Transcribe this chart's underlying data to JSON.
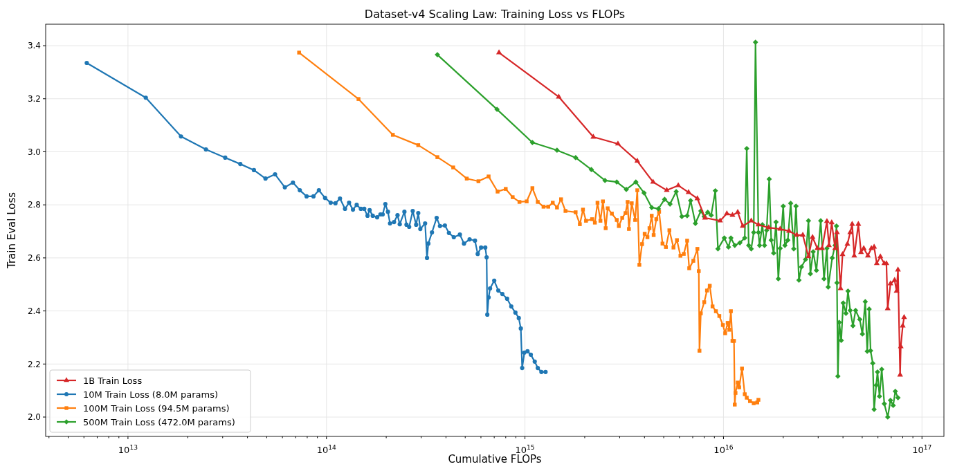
{
  "chart_data": {
    "type": "line",
    "title": "Dataset-v4 Scaling Law: Training Loss vs FLOPs",
    "xlabel": "Cumulative FLOPs",
    "ylabel": "Train Eval Loss",
    "log": "x",
    "grid": true,
    "legend": "bottom left",
    "line_style": "solid",
    "xlim": [
      3850000000000.0,
      1.29e+17
    ],
    "xticks": [
      {
        "value": 4000000000000.0,
        "label": null
      },
      {
        "value": 5000000000000.0,
        "label": null
      },
      {
        "value": 6000000000000.0,
        "label": null
      },
      {
        "value": 7000000000000.0,
        "label": null
      },
      {
        "value": 8000000000000.0,
        "label": null
      },
      {
        "value": 9000000000000.0,
        "label": null
      },
      {
        "value": 10000000000000.0,
        "label": "10$^{13}$"
      },
      {
        "value": 20000000000000.0,
        "label": null
      },
      {
        "value": 30000000000000.0,
        "label": null
      },
      {
        "value": 40000000000000.0,
        "label": null
      },
      {
        "value": 50000000000000.0,
        "label": null
      },
      {
        "value": 60000000000000.0,
        "label": null
      },
      {
        "value": 70000000000000.0,
        "label": null
      },
      {
        "value": 80000000000000.0,
        "label": null
      },
      {
        "value": 90000000000000.0,
        "label": null
      },
      {
        "value": 100000000000000.0,
        "label": "10$^{14}$"
      },
      {
        "value": 200000000000000.0,
        "label": null
      },
      {
        "value": 300000000000000.0,
        "label": null
      },
      {
        "value": 400000000000000.0,
        "label": null
      },
      {
        "value": 500000000000000.0,
        "label": null
      },
      {
        "value": 600000000000000.0,
        "label": null
      },
      {
        "value": 700000000000000.0,
        "label": null
      },
      {
        "value": 800000000000000.0,
        "label": null
      },
      {
        "value": 900000000000000.0,
        "label": null
      },
      {
        "value": 1000000000000000.0,
        "label": "10$^{15}$"
      },
      {
        "value": 2000000000000000.0,
        "label": null
      },
      {
        "value": 3000000000000000.0,
        "label": null
      },
      {
        "value": 4000000000000000.0,
        "label": null
      },
      {
        "value": 5000000000000000.0,
        "label": null
      },
      {
        "value": 6000000000000000.0,
        "label": null
      },
      {
        "value": 7000000000000000.0,
        "label": null
      },
      {
        "value": 8000000000000000.0,
        "label": null
      },
      {
        "value": 9000000000000000.0,
        "label": null
      },
      {
        "value": 1e+16,
        "label": "10$^{16}$"
      },
      {
        "value": 2e+16,
        "label": null
      },
      {
        "value": 3e+16,
        "label": null
      },
      {
        "value": 4e+16,
        "label": null
      },
      {
        "value": 5e+16,
        "label": null
      },
      {
        "value": 6e+16,
        "label": null
      },
      {
        "value": 7e+16,
        "label": null
      },
      {
        "value": 8e+16,
        "label": null
      },
      {
        "value": 9e+16,
        "label": null
      },
      {
        "value": 1e+17,
        "label": "10$^{17}$"
      }
    ],
    "ylim": [
      1.927,
      3.481
    ],
    "yticks": [
      {
        "value": 2.0,
        "label": "2.0"
      },
      {
        "value": 2.2,
        "label": "2.2"
      },
      {
        "value": 2.4,
        "label": "2.4"
      },
      {
        "value": 2.6,
        "label": "2.6"
      },
      {
        "value": 2.8,
        "label": "2.8"
      },
      {
        "value": 3.0,
        "label": "3.0"
      },
      {
        "value": 3.2,
        "label": "3.2"
      },
      {
        "value": 3.4,
        "label": "3.4"
      }
    ],
    "series": [
      {
        "name": "1B Train Loss",
        "color": "#d62728",
        "marker": "triangle",
        "x": [
          740000000000000.0,
          1480000000000000.0,
          2210000000000000.0,
          2940000000000000.0,
          3680000000000000.0,
          4420000000000000.0,
          5180000000000000.0,
          5920000000000000.0,
          6670000000000000.0,
          7390000000000000.0,
          8070000000000000.0,
          9620000000000000.0,
          1.04e+16,
          1.11e+16,
          1.18e+16,
          1.25e+16,
          1.38e+16,
          1.5e+16,
          1.69e+16,
          1.93e+16,
          2.14e+16,
          2.34e+16,
          2.51e+16,
          2.68e+16,
          2.81e+16,
          2.97e+16,
          3.14e+16,
          3.32e+16,
          3.4e+16,
          3.51e+16,
          3.65e+16,
          3.73e+16,
          3.89e+16,
          3.98e+16,
          4.21e+16,
          4.35e+16,
          4.45e+16,
          4.56e+16,
          4.78e+16,
          4.93e+16,
          5.09e+16,
          5.34e+16,
          5.56e+16,
          5.74e+16,
          5.92e+16,
          6.17e+16,
          6.46e+16,
          6.62e+16,
          6.72e+16,
          6.94e+16,
          7.28e+16,
          7.45e+16,
          7.57e+16,
          7.76e+16,
          7.82e+16,
          8e+16,
          8.13e+16
        ],
        "values": [
          3.374,
          3.207,
          3.056,
          3.03,
          2.965,
          2.886,
          2.855,
          2.873,
          2.847,
          2.824,
          2.751,
          2.74,
          2.767,
          2.761,
          2.772,
          2.72,
          2.74,
          2.725,
          2.714,
          2.709,
          2.701,
          2.686,
          2.686,
          2.605,
          2.678,
          2.636,
          2.636,
          2.738,
          2.647,
          2.733,
          2.636,
          2.696,
          2.485,
          2.613,
          2.652,
          2.696,
          2.727,
          2.608,
          2.727,
          2.621,
          2.636,
          2.608,
          2.636,
          2.641,
          2.579,
          2.605,
          2.579,
          2.579,
          2.409,
          2.503,
          2.516,
          2.475,
          2.555,
          2.159,
          2.266,
          2.344,
          2.376
        ]
      },
      {
        "name": "10M Train Loss (8.0M params)",
        "color": "#1f77b4",
        "marker": "circle",
        "x": [
          6200000000000.0,
          12300000000000.0,
          18500000000000.0,
          24700000000000.0,
          30900000000000.0,
          36800000000000.0,
          43100000000000.0,
          49300000000000.0,
          55100000000000.0,
          61700000000000.0,
          67800000000000.0,
          73400000000000.0,
          79400000000000.0,
          86000000000000.0,
          91600000000000.0,
          98400000000000.0,
          105000000000000.0,
          111000000000000.0,
          117000000000000.0,
          124000000000000.0,
          130000000000000.0,
          136000000000000.0,
          142000000000000.0,
          149000000000000.0,
          155000000000000.0,
          161000000000000.0,
          165000000000000.0,
          171000000000000.0,
          180000000000000.0,
          187000000000000.0,
          192000000000000.0,
          198000000000000.0,
          204000000000000.0,
          209000000000000.0,
          219000000000000.0,
          228000000000000.0,
          234000000000000.0,
          247000000000000.0,
          253000000000000.0,
          261000000000000.0,
          272000000000000.0,
          283000000000000.0,
          290000000000000.0,
          297000000000000.0,
          314000000000000.0,
          321000000000000.0,
          326000000000000.0,
          340000000000000.0,
          359000000000000.0,
          373000000000000.0,
          395000000000000.0,
          414000000000000.0,
          438000000000000.0,
          470000000000000.0,
          493000000000000.0,
          526000000000000.0,
          560000000000000.0,
          578000000000000.0,
          601000000000000.0,
          631000000000000.0,
          641000000000000.0,
          646000000000000.0,
          656000000000000.0,
          667000000000000.0,
          700000000000000.0,
          734000000000000.0,
          769000000000000.0,
          813000000000000.0,
          853000000000000.0,
          895000000000000.0,
          931000000000000.0,
          953000000000000.0,
          968000000000000.0,
          993000000000000.0,
          1030000000000000.0,
          1070000000000000.0,
          1120000000000000.0,
          1160000000000000.0,
          1210000000000000.0,
          1270000000000000.0
        ],
        "values": [
          3.335,
          3.204,
          3.058,
          3.009,
          2.978,
          2.954,
          2.931,
          2.899,
          2.915,
          2.866,
          2.884,
          2.855,
          2.832,
          2.832,
          2.855,
          2.826,
          2.808,
          2.806,
          2.824,
          2.785,
          2.808,
          2.782,
          2.8,
          2.785,
          2.785,
          2.759,
          2.78,
          2.759,
          2.753,
          2.764,
          2.764,
          2.803,
          2.774,
          2.73,
          2.735,
          2.761,
          2.727,
          2.774,
          2.725,
          2.717,
          2.777,
          2.725,
          2.769,
          2.709,
          2.73,
          2.6,
          2.654,
          2.696,
          2.751,
          2.72,
          2.722,
          2.694,
          2.678,
          2.688,
          2.654,
          2.67,
          2.665,
          2.615,
          2.639,
          2.639,
          2.602,
          2.386,
          2.451,
          2.485,
          2.514,
          2.477,
          2.464,
          2.446,
          2.417,
          2.394,
          2.373,
          2.334,
          2.185,
          2.243,
          2.248,
          2.235,
          2.209,
          2.185,
          2.17,
          2.17
        ]
      },
      {
        "name": "100M Train Loss (94.5M params)",
        "color": "#ff7f0e",
        "marker": "square",
        "x": [
          72800000000000.0,
          145000000000000.0,
          216000000000000.0,
          290000000000000.0,
          362000000000000.0,
          435000000000000.0,
          509000000000000.0,
          583000000000000.0,
          656000000000000.0,
          728000000000000.0,
          800000000000000.0,
          867000000000000.0,
          938000000000000.0,
          1020000000000000.0,
          1090000000000000.0,
          1160000000000000.0,
          1240000000000000.0,
          1310000000000000.0,
          1380000000000000.0,
          1450000000000000.0,
          1520000000000000.0,
          1600000000000000.0,
          1800000000000000.0,
          1890000000000000.0,
          1960000000000000.0,
          2030000000000000.0,
          2180000000000000.0,
          2250000000000000.0,
          2320000000000000.0,
          2400000000000000.0,
          2470000000000000.0,
          2550000000000000.0,
          2610000000000000.0,
          2740000000000000.0,
          2900000000000000.0,
          2970000000000000.0,
          3090000000000000.0,
          3210000000000000.0,
          3290000000000000.0,
          3340000000000000.0,
          3450000000000000.0,
          3590000000000000.0,
          3680000000000000.0,
          3770000000000000.0,
          3890000000000000.0,
          4010000000000000.0,
          4140000000000000.0,
          4240000000000000.0,
          4350000000000000.0,
          4450000000000000.0,
          4590000000000000.0,
          4740000000000000.0,
          4930000000000000.0,
          5130000000000000.0,
          5340000000000000.0,
          5600000000000000.0,
          5830000000000000.0,
          6070000000000000.0,
          6310000000000000.0,
          6560000000000000.0,
          6720000000000000.0,
          7050000000000000.0,
          7390000000000000.0,
          7510000000000000.0,
          7570000000000000.0,
          7690000000000000.0,
          8000000000000000.0,
          8260000000000000.0,
          8530000000000000.0,
          8810000000000000.0,
          9160000000000000.0,
          9530000000000000.0,
          9930000000000000.0,
          1.02e+16,
          1.05e+16,
          1.07e+16,
          1.09e+16,
          1.11e+16,
          1.13e+16,
          1.14e+16,
          1.15e+16,
          1.18e+16,
          1.2e+16,
          1.24e+16,
          1.28e+16,
          1.31e+16,
          1.36e+16,
          1.42e+16,
          1.48e+16,
          1.5e+16
        ],
        "values": [
          3.374,
          3.199,
          3.064,
          3.025,
          2.98,
          2.941,
          2.899,
          2.889,
          2.907,
          2.85,
          2.86,
          2.829,
          2.811,
          2.813,
          2.863,
          2.811,
          2.793,
          2.793,
          2.808,
          2.79,
          2.821,
          2.777,
          2.772,
          2.727,
          2.782,
          2.74,
          2.746,
          2.733,
          2.808,
          2.74,
          2.813,
          2.712,
          2.787,
          2.767,
          2.743,
          2.72,
          2.751,
          2.769,
          2.811,
          2.709,
          2.806,
          2.743,
          2.855,
          2.574,
          2.652,
          2.691,
          2.678,
          2.712,
          2.759,
          2.686,
          2.746,
          2.774,
          2.654,
          2.641,
          2.704,
          2.639,
          2.667,
          2.608,
          2.615,
          2.665,
          2.561,
          2.589,
          2.634,
          2.55,
          2.25,
          2.391,
          2.433,
          2.477,
          2.495,
          2.417,
          2.399,
          2.381,
          2.347,
          2.316,
          2.355,
          2.329,
          2.399,
          2.287,
          2.287,
          2.047,
          2.091,
          2.13,
          2.112,
          2.183,
          2.086,
          2.073,
          2.06,
          2.052,
          2.055,
          2.065
        ]
      },
      {
        "name": "500M Train Loss (472.0M params)",
        "color": "#2ca02c",
        "marker": "diamond",
        "x": [
          362000000000000.0,
          723000000000000.0,
          1090000000000000.0,
          1450000000000000.0,
          1800000000000000.0,
          2160000000000000.0,
          2530000000000000.0,
          2900000000000000.0,
          3240000000000000.0,
          3620000000000000.0,
          3980000000000000.0,
          4350000000000000.0,
          4700000000000000.0,
          5050000000000000.0,
          5380000000000000.0,
          5780000000000000.0,
          6170000000000000.0,
          6560000000000000.0,
          6830000000000000.0,
          7220000000000000.0,
          7690000000000000.0,
          8000000000000000.0,
          8330000000000000.0,
          8670000000000000.0,
          9100000000000000.0,
          9380000000000000.0,
          1.01e+16,
          1.06e+16,
          1.09e+16,
          1.14e+16,
          1.21e+16,
          1.28e+16,
          1.31e+16,
          1.34e+16,
          1.38e+16,
          1.42e+16,
          1.45e+16,
          1.5e+16,
          1.52e+16,
          1.57e+16,
          1.61e+16,
          1.65e+16,
          1.7e+16,
          1.74e+16,
          1.79e+16,
          1.84e+16,
          1.89e+16,
          1.93e+16,
          2e+16,
          2.04e+16,
          2.11e+16,
          2.18e+16,
          2.26e+16,
          2.32e+16,
          2.4e+16,
          2.47e+16,
          2.59e+16,
          2.68e+16,
          2.74e+16,
          2.83e+16,
          2.94e+16,
          3.09e+16,
          3.21e+16,
          3.32e+16,
          3.37e+16,
          3.53e+16,
          3.65e+16,
          3.71e+16,
          3.73e+16,
          3.77e+16,
          3.83e+16,
          3.92e+16,
          4.01e+16,
          4.14e+16,
          4.24e+16,
          4.35e+16,
          4.49e+16,
          4.63e+16,
          4.86e+16,
          5.01e+16,
          5.18e+16,
          5.3e+16,
          5.42e+16,
          5.51e+16,
          5.65e+16,
          5.74e+16,
          5.88e+16,
          5.97e+16,
          6.11e+16,
          6.27e+16,
          6.46e+16,
          6.72e+16,
          6.94e+16,
          7.16e+16,
          7.34e+16,
          7.57e+16
        ],
        "values": [
          3.366,
          3.16,
          3.035,
          3.006,
          2.978,
          2.933,
          2.892,
          2.886,
          2.858,
          2.886,
          2.845,
          2.79,
          2.785,
          2.821,
          2.803,
          2.85,
          2.756,
          2.759,
          2.816,
          2.73,
          2.777,
          2.756,
          2.772,
          2.761,
          2.853,
          2.634,
          2.675,
          2.641,
          2.675,
          2.647,
          2.657,
          2.675,
          3.012,
          2.647,
          2.634,
          2.696,
          3.413,
          2.696,
          2.647,
          2.725,
          2.647,
          2.704,
          2.897,
          2.667,
          2.618,
          2.735,
          2.521,
          2.636,
          2.795,
          2.647,
          2.667,
          2.806,
          2.634,
          2.795,
          2.516,
          2.566,
          2.594,
          2.74,
          2.54,
          2.623,
          2.553,
          2.74,
          2.521,
          2.636,
          2.49,
          2.6,
          2.647,
          2.72,
          2.506,
          2.154,
          2.357,
          2.289,
          2.43,
          2.391,
          2.475,
          2.402,
          2.344,
          2.402,
          2.368,
          2.313,
          2.435,
          2.248,
          2.407,
          2.25,
          2.203,
          2.029,
          2.12,
          2.17,
          2.078,
          2.18,
          2.05,
          2.0,
          2.063,
          2.044,
          2.097,
          2.073
        ]
      }
    ]
  }
}
